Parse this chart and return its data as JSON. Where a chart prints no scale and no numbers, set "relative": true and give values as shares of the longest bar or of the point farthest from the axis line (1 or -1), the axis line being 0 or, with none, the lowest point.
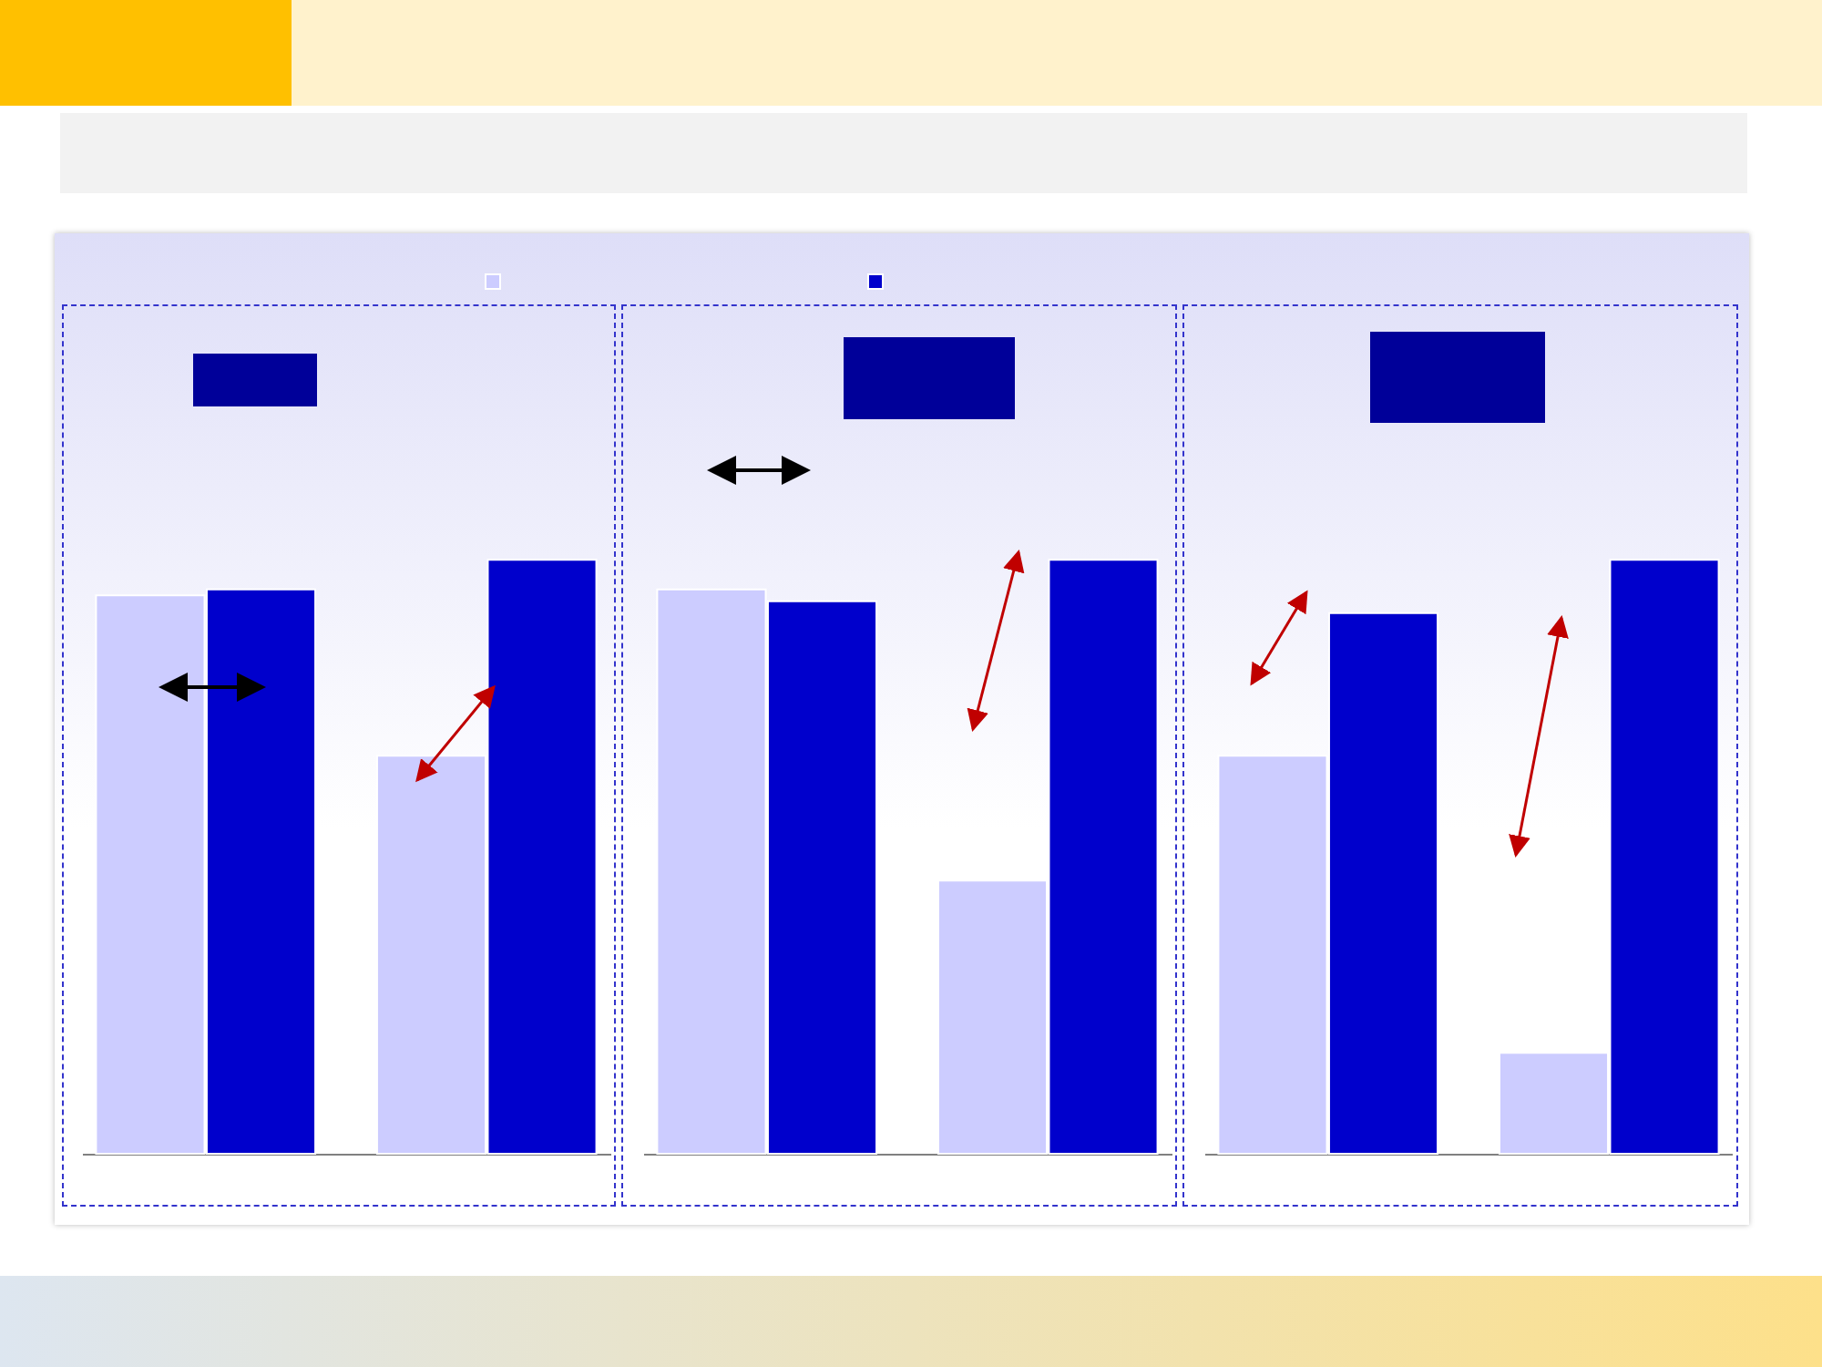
{
  "chart_data": [
    {
      "type": "bar",
      "relative": true,
      "categories": [
        null,
        null
      ],
      "series": [
        {
          "color": "#ccccff",
          "values": [
            0.94,
            0.67
          ]
        },
        {
          "color": "#0000cc",
          "values": [
            0.95,
            1
          ]
        }
      ]
    },
    {
      "type": "bar",
      "relative": true,
      "categories": [
        null,
        null
      ],
      "series": [
        {
          "color": "#ccccff",
          "values": [
            0.95,
            0.46
          ]
        },
        {
          "color": "#0000cc",
          "values": [
            0.93,
            1
          ]
        }
      ]
    },
    {
      "type": "bar",
      "relative": true,
      "categories": [
        null,
        null
      ],
      "series": [
        {
          "color": "#ccccff",
          "values": [
            0.67,
            0.17
          ]
        },
        {
          "color": "#0000cc",
          "values": [
            0.91,
            1
          ]
        }
      ]
    }
  ]
}
